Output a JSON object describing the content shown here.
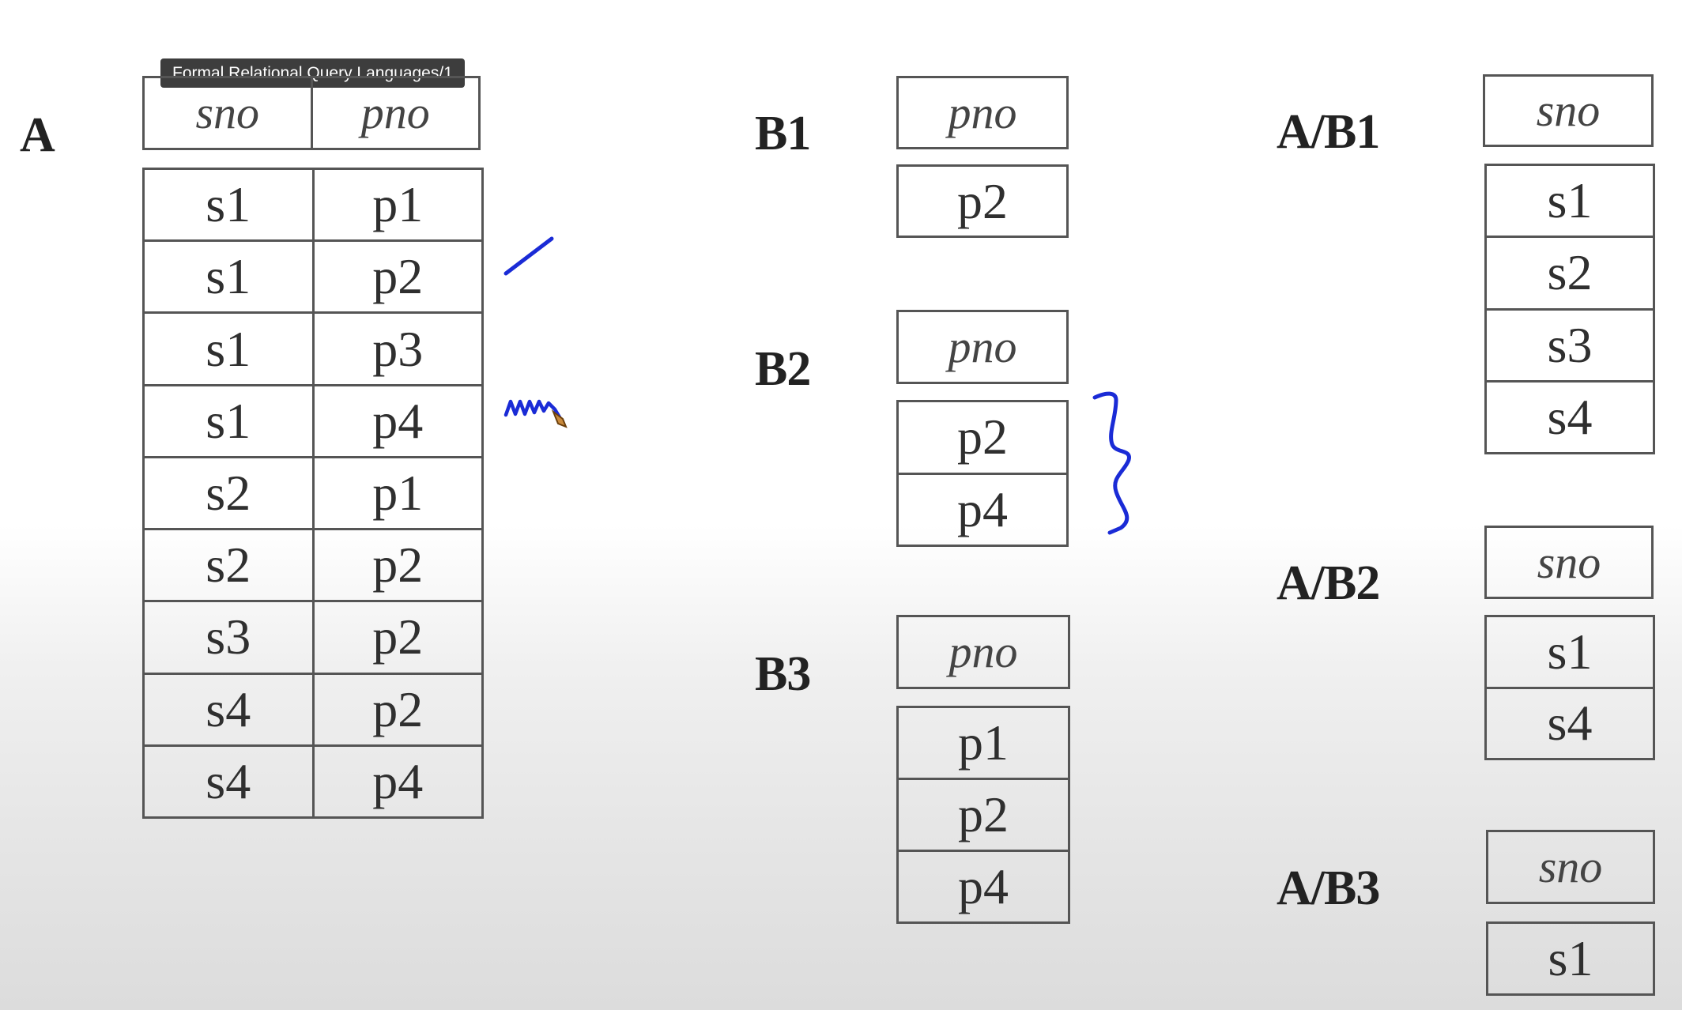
{
  "tooltip": "Formal Relational Query Languages/1",
  "relations": {
    "A": {
      "label": "A",
      "headers": [
        "sno",
        "pno"
      ],
      "rows": [
        [
          "s1",
          "p1"
        ],
        [
          "s1",
          "p2"
        ],
        [
          "s1",
          "p3"
        ],
        [
          "s1",
          "p4"
        ],
        [
          "s2",
          "p1"
        ],
        [
          "s2",
          "p2"
        ],
        [
          "s3",
          "p2"
        ],
        [
          "s4",
          "p2"
        ],
        [
          "s4",
          "p4"
        ]
      ]
    },
    "B1": {
      "label": "B1",
      "header": "pno",
      "rows": [
        "p2"
      ]
    },
    "B2": {
      "label": "B2",
      "header": "pno",
      "rows": [
        "p2",
        "p4"
      ]
    },
    "B3": {
      "label": "B3",
      "header": "pno",
      "rows": [
        "p1",
        "p2",
        "p4"
      ]
    },
    "AB1": {
      "label": "A/B1",
      "header": "sno",
      "rows": [
        "s1",
        "s2",
        "s3",
        "s4"
      ]
    },
    "AB2": {
      "label": "A/B2",
      "header": "sno",
      "rows": [
        "s1",
        "s4"
      ]
    },
    "AB3": {
      "label": "A/B3",
      "header": "sno",
      "rows": [
        "s1"
      ]
    }
  },
  "ink_color": "#1a2bd6"
}
